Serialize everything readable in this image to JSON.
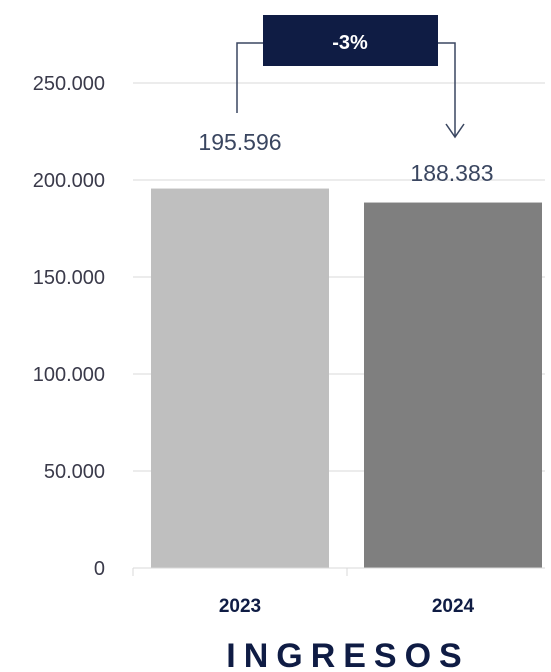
{
  "chart_data": {
    "type": "bar",
    "title": "INGRESOS",
    "categories": [
      "2023",
      "2024"
    ],
    "values": [
      195596,
      188383
    ],
    "value_labels": [
      "195.596",
      "188.383"
    ],
    "bar_colors": [
      "#bfbfbf",
      "#7f7f7f"
    ],
    "ylim": [
      0,
      250000
    ],
    "yticks": [
      0,
      50000,
      100000,
      150000,
      200000,
      250000
    ],
    "ytick_labels": [
      "0",
      "50.000",
      "100.000",
      "150.000",
      "200.000",
      "250.000"
    ],
    "grid": true,
    "xlabel": "",
    "ylabel": "",
    "annotation": {
      "text": "-3%",
      "from": "2023",
      "to": "2024",
      "box_color": "#0f1c44"
    }
  }
}
